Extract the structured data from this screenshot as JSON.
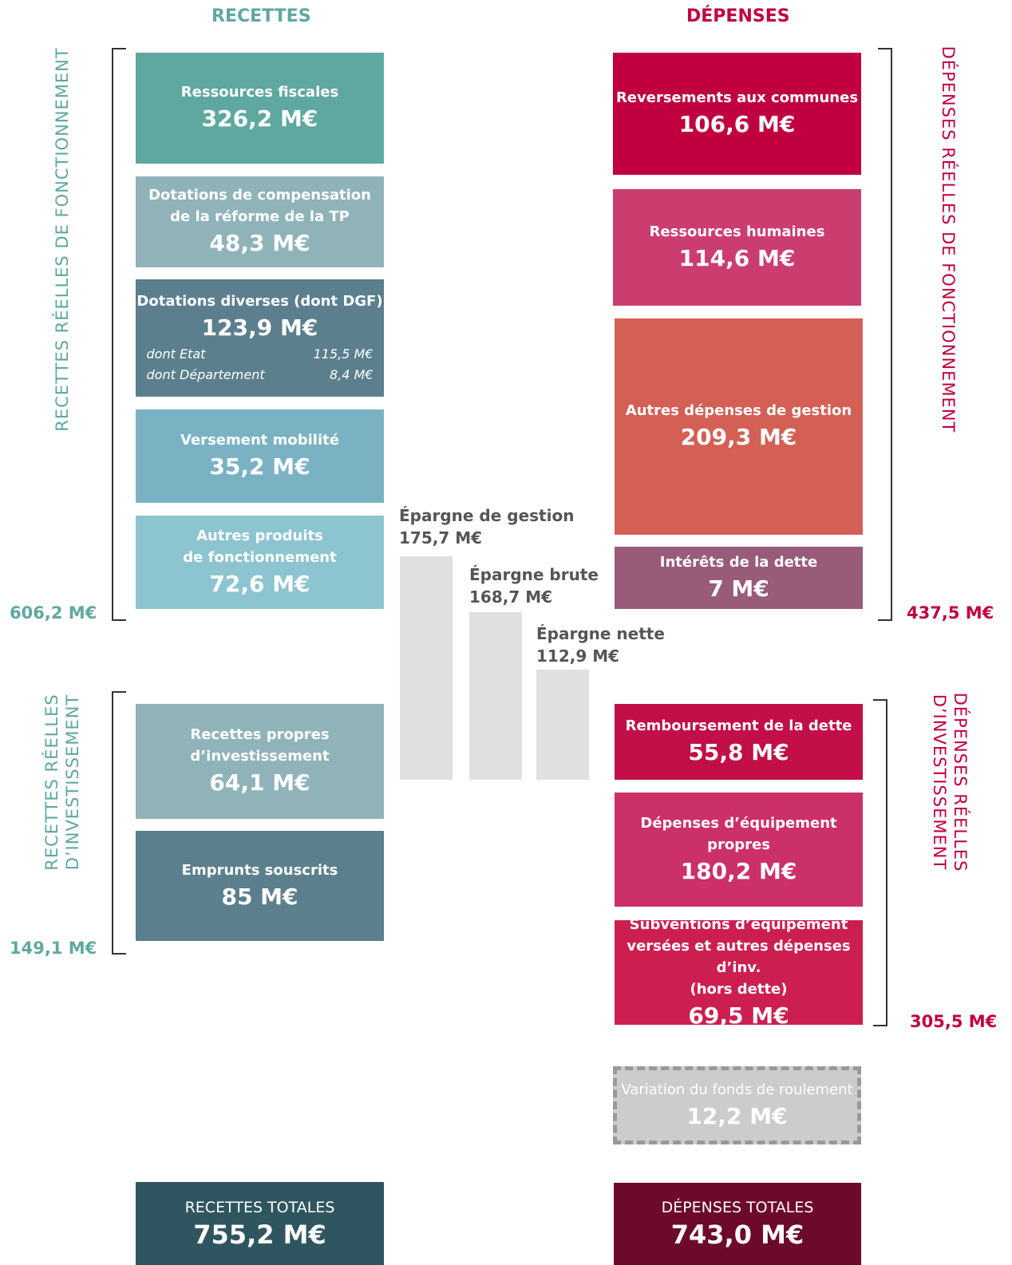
{
  "header": {
    "recettes": "RECETTES",
    "depenses": "DÉPENSES"
  },
  "side_labels": {
    "left_fonct": "RECETTES RÉELLES DE FONCTIONNEMENT",
    "left_inv": [
      "RECETTES RÉELLES",
      "D’INVESTISSEMENT"
    ],
    "right_fonct": "DÉPENSES RÉELLES DE FONCTIONNEMENT",
    "right_inv": [
      "DÉPENSES RÉELLES",
      "D’INVESTISSEMENT"
    ]
  },
  "subtotals": {
    "left_fonct": "606,2 M€",
    "left_inv": "149,1 M€",
    "right_fonct": "437,5 M€",
    "right_inv": "305,5 M€"
  },
  "recettes": [
    {
      "label": [
        "Ressources fiscales"
      ],
      "value": "326,2 M€"
    },
    {
      "label": [
        "Dotations de compensation",
        "de la réforme de la TP"
      ],
      "value": "48,3 M€"
    },
    {
      "label": [
        "Dotations diverses (dont DGF)"
      ],
      "value": "123,9 M€",
      "details": [
        [
          "dont Etat",
          "115,5 M€"
        ],
        [
          "dont Département",
          "8,4 M€"
        ]
      ]
    },
    {
      "label": [
        "Versement mobilité"
      ],
      "value": "35,2 M€"
    },
    {
      "label": [
        "Autres produits",
        "de fonctionnement"
      ],
      "value": "72,6 M€"
    },
    {
      "label": [
        "Recettes propres",
        "d’investissement"
      ],
      "value": "64,1 M€"
    },
    {
      "label": [
        "Emprunts souscrits"
      ],
      "value": "85 M€"
    }
  ],
  "depenses": [
    {
      "label": [
        "Reversements aux communes"
      ],
      "value": "106,6 M€"
    },
    {
      "label": [
        "Ressources humaines"
      ],
      "value": "114,6 M€"
    },
    {
      "label": [
        "Autres dépenses de gestion"
      ],
      "value": "209,3 M€"
    },
    {
      "label": [
        "Intérêts de la dette"
      ],
      "value": "7 M€"
    },
    {
      "label": [
        "Remboursement de la dette"
      ],
      "value": "55,8 M€"
    },
    {
      "label": [
        "Dépenses d’équipement",
        "propres"
      ],
      "value": "180,2 M€"
    },
    {
      "label": [
        "Subventions d’équipement",
        "versées et autres dépenses d’inv.",
        "(hors dette)"
      ],
      "value": "69,5 M€"
    },
    {
      "label": [
        "Variation du fonds de roulement"
      ],
      "value": "12,2 M€"
    }
  ],
  "epargne": [
    {
      "label": "Épargne de gestion",
      "value": "175,7 M€"
    },
    {
      "label": "Épargne brute",
      "value": "168,7 M€"
    },
    {
      "label": "Épargne nette",
      "value": "112,9 M€"
    }
  ],
  "totals": {
    "recettes": {
      "label": "RECETTES TOTALES",
      "value": "755,2 M€"
    },
    "depenses": {
      "label": "DÉPENSES TOTALES",
      "value": "743,0 M€"
    }
  }
}
